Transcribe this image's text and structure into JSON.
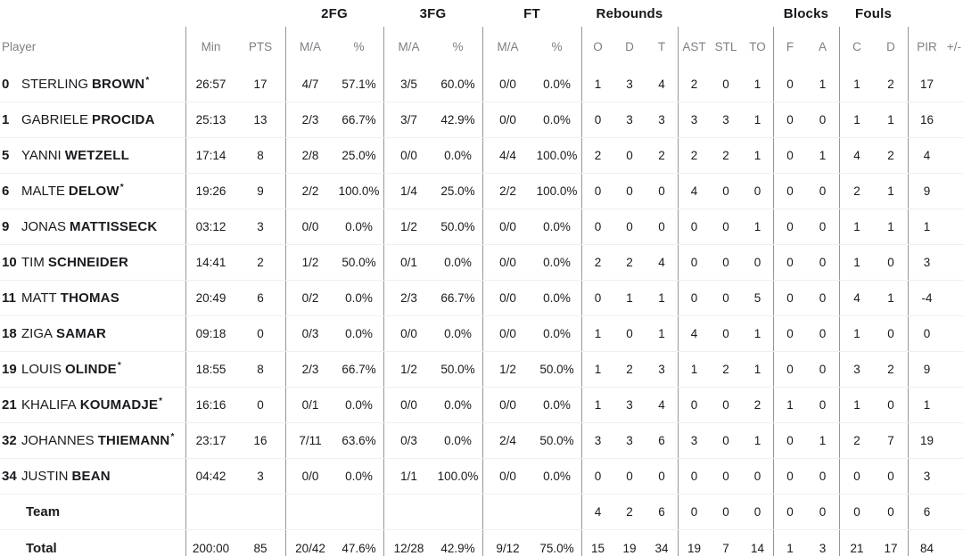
{
  "colors": {
    "background": "#ffffff",
    "text": "#1a1a1e",
    "header_text": "#7f7f85",
    "group_divider": "#969696",
    "row_divider": "#efefef"
  },
  "table": {
    "group_headers": {
      "fg2": "2FG",
      "fg3": "3FG",
      "ft": "FT",
      "rebounds": "Rebounds",
      "blocks": "Blocks",
      "fouls": "Fouls"
    },
    "column_headers": {
      "player": "Player",
      "min": "Min",
      "pts": "PTS",
      "ma2": "M/A",
      "pct2": "%",
      "ma3": "M/A",
      "pct3": "%",
      "maf": "M/A",
      "pctf": "%",
      "reb_o": "O",
      "reb_d": "D",
      "reb_t": "T",
      "ast": "AST",
      "stl": "STL",
      "to": "TO",
      "blk_f": "F",
      "blk_a": "A",
      "foul_c": "C",
      "foul_d": "D",
      "pir": "PIR",
      "plus_minus": "+/-"
    },
    "rows": [
      {
        "num": "0",
        "first": "STERLING",
        "last": "BROWN",
        "star": "*",
        "label": "",
        "min": "26:57",
        "pts": "17",
        "fg2_ma": "4/7",
        "fg2_pct": "57.1%",
        "fg3_ma": "3/5",
        "fg3_pct": "60.0%",
        "ft_ma": "0/0",
        "ft_pct": "0.0%",
        "reb_o": "1",
        "reb_d": "3",
        "reb_t": "4",
        "ast": "2",
        "stl": "0",
        "to": "1",
        "blk_f": "0",
        "blk_a": "1",
        "foul_c": "1",
        "foul_d": "2",
        "pir": "17",
        "pm": ""
      },
      {
        "num": "1",
        "first": "GABRIELE",
        "last": "PROCIDA",
        "star": "",
        "label": "",
        "min": "25:13",
        "pts": "13",
        "fg2_ma": "2/3",
        "fg2_pct": "66.7%",
        "fg3_ma": "3/7",
        "fg3_pct": "42.9%",
        "ft_ma": "0/0",
        "ft_pct": "0.0%",
        "reb_o": "0",
        "reb_d": "3",
        "reb_t": "3",
        "ast": "3",
        "stl": "3",
        "to": "1",
        "blk_f": "0",
        "blk_a": "0",
        "foul_c": "1",
        "foul_d": "1",
        "pir": "16",
        "pm": ""
      },
      {
        "num": "5",
        "first": "YANNI",
        "last": "WETZELL",
        "star": "",
        "label": "",
        "min": "17:14",
        "pts": "8",
        "fg2_ma": "2/8",
        "fg2_pct": "25.0%",
        "fg3_ma": "0/0",
        "fg3_pct": "0.0%",
        "ft_ma": "4/4",
        "ft_pct": "100.0%",
        "reb_o": "2",
        "reb_d": "0",
        "reb_t": "2",
        "ast": "2",
        "stl": "2",
        "to": "1",
        "blk_f": "0",
        "blk_a": "1",
        "foul_c": "4",
        "foul_d": "2",
        "pir": "4",
        "pm": ""
      },
      {
        "num": "6",
        "first": "MALTE",
        "last": "DELOW",
        "star": "*",
        "label": "",
        "min": "19:26",
        "pts": "9",
        "fg2_ma": "2/2",
        "fg2_pct": "100.0%",
        "fg3_ma": "1/4",
        "fg3_pct": "25.0%",
        "ft_ma": "2/2",
        "ft_pct": "100.0%",
        "reb_o": "0",
        "reb_d": "0",
        "reb_t": "0",
        "ast": "4",
        "stl": "0",
        "to": "0",
        "blk_f": "0",
        "blk_a": "0",
        "foul_c": "2",
        "foul_d": "1",
        "pir": "9",
        "pm": ""
      },
      {
        "num": "9",
        "first": "JONAS",
        "last": "MATTISSECK",
        "star": "",
        "label": "",
        "min": "03:12",
        "pts": "3",
        "fg2_ma": "0/0",
        "fg2_pct": "0.0%",
        "fg3_ma": "1/2",
        "fg3_pct": "50.0%",
        "ft_ma": "0/0",
        "ft_pct": "0.0%",
        "reb_o": "0",
        "reb_d": "0",
        "reb_t": "0",
        "ast": "0",
        "stl": "0",
        "to": "1",
        "blk_f": "0",
        "blk_a": "0",
        "foul_c": "1",
        "foul_d": "1",
        "pir": "1",
        "pm": ""
      },
      {
        "num": "10",
        "first": "TIM",
        "last": "SCHNEIDER",
        "star": "",
        "label": "",
        "min": "14:41",
        "pts": "2",
        "fg2_ma": "1/2",
        "fg2_pct": "50.0%",
        "fg3_ma": "0/1",
        "fg3_pct": "0.0%",
        "ft_ma": "0/0",
        "ft_pct": "0.0%",
        "reb_o": "2",
        "reb_d": "2",
        "reb_t": "4",
        "ast": "0",
        "stl": "0",
        "to": "0",
        "blk_f": "0",
        "blk_a": "0",
        "foul_c": "1",
        "foul_d": "0",
        "pir": "3",
        "pm": ""
      },
      {
        "num": "11",
        "first": "MATT",
        "last": "THOMAS",
        "star": "",
        "label": "",
        "min": "20:49",
        "pts": "6",
        "fg2_ma": "0/2",
        "fg2_pct": "0.0%",
        "fg3_ma": "2/3",
        "fg3_pct": "66.7%",
        "ft_ma": "0/0",
        "ft_pct": "0.0%",
        "reb_o": "0",
        "reb_d": "1",
        "reb_t": "1",
        "ast": "0",
        "stl": "0",
        "to": "5",
        "blk_f": "0",
        "blk_a": "0",
        "foul_c": "4",
        "foul_d": "1",
        "pir": "-4",
        "pm": ""
      },
      {
        "num": "18",
        "first": "ZIGA",
        "last": "SAMAR",
        "star": "",
        "label": "",
        "min": "09:18",
        "pts": "0",
        "fg2_ma": "0/3",
        "fg2_pct": "0.0%",
        "fg3_ma": "0/0",
        "fg3_pct": "0.0%",
        "ft_ma": "0/0",
        "ft_pct": "0.0%",
        "reb_o": "1",
        "reb_d": "0",
        "reb_t": "1",
        "ast": "4",
        "stl": "0",
        "to": "1",
        "blk_f": "0",
        "blk_a": "0",
        "foul_c": "1",
        "foul_d": "0",
        "pir": "0",
        "pm": ""
      },
      {
        "num": "19",
        "first": "LOUIS",
        "last": "OLINDE",
        "star": "*",
        "label": "",
        "min": "18:55",
        "pts": "8",
        "fg2_ma": "2/3",
        "fg2_pct": "66.7%",
        "fg3_ma": "1/2",
        "fg3_pct": "50.0%",
        "ft_ma": "1/2",
        "ft_pct": "50.0%",
        "reb_o": "1",
        "reb_d": "2",
        "reb_t": "3",
        "ast": "1",
        "stl": "2",
        "to": "1",
        "blk_f": "0",
        "blk_a": "0",
        "foul_c": "3",
        "foul_d": "2",
        "pir": "9",
        "pm": ""
      },
      {
        "num": "21",
        "first": "KHALIFA",
        "last": "KOUMADJE",
        "star": "*",
        "label": "",
        "min": "16:16",
        "pts": "0",
        "fg2_ma": "0/1",
        "fg2_pct": "0.0%",
        "fg3_ma": "0/0",
        "fg3_pct": "0.0%",
        "ft_ma": "0/0",
        "ft_pct": "0.0%",
        "reb_o": "1",
        "reb_d": "3",
        "reb_t": "4",
        "ast": "0",
        "stl": "0",
        "to": "2",
        "blk_f": "1",
        "blk_a": "0",
        "foul_c": "1",
        "foul_d": "0",
        "pir": "1",
        "pm": ""
      },
      {
        "num": "32",
        "first": "JOHANNES",
        "last": "THIEMANN",
        "star": "*",
        "label": "",
        "min": "23:17",
        "pts": "16",
        "fg2_ma": "7/11",
        "fg2_pct": "63.6%",
        "fg3_ma": "0/3",
        "fg3_pct": "0.0%",
        "ft_ma": "2/4",
        "ft_pct": "50.0%",
        "reb_o": "3",
        "reb_d": "3",
        "reb_t": "6",
        "ast": "3",
        "stl": "0",
        "to": "1",
        "blk_f": "0",
        "blk_a": "1",
        "foul_c": "2",
        "foul_d": "7",
        "pir": "19",
        "pm": ""
      },
      {
        "num": "34",
        "first": "JUSTIN",
        "last": "BEAN",
        "star": "",
        "label": "",
        "min": "04:42",
        "pts": "3",
        "fg2_ma": "0/0",
        "fg2_pct": "0.0%",
        "fg3_ma": "1/1",
        "fg3_pct": "100.0%",
        "ft_ma": "0/0",
        "ft_pct": "0.0%",
        "reb_o": "0",
        "reb_d": "0",
        "reb_t": "0",
        "ast": "0",
        "stl": "0",
        "to": "0",
        "blk_f": "0",
        "blk_a": "0",
        "foul_c": "0",
        "foul_d": "0",
        "pir": "3",
        "pm": ""
      },
      {
        "num": "",
        "first": "",
        "last": "",
        "star": "",
        "label": "Team",
        "min": "",
        "pts": "",
        "fg2_ma": "",
        "fg2_pct": "",
        "fg3_ma": "",
        "fg3_pct": "",
        "ft_ma": "",
        "ft_pct": "",
        "reb_o": "4",
        "reb_d": "2",
        "reb_t": "6",
        "ast": "0",
        "stl": "0",
        "to": "0",
        "blk_f": "0",
        "blk_a": "0",
        "foul_c": "0",
        "foul_d": "0",
        "pir": "6",
        "pm": ""
      },
      {
        "num": "",
        "first": "",
        "last": "",
        "star": "",
        "label": "Total",
        "min": "200:00",
        "pts": "85",
        "fg2_ma": "20/42",
        "fg2_pct": "47.6%",
        "fg3_ma": "12/28",
        "fg3_pct": "42.9%",
        "ft_ma": "9/12",
        "ft_pct": "75.0%",
        "reb_o": "15",
        "reb_d": "19",
        "reb_t": "34",
        "ast": "19",
        "stl": "7",
        "to": "14",
        "blk_f": "1",
        "blk_a": "3",
        "foul_c": "21",
        "foul_d": "17",
        "pir": "84",
        "pm": ""
      }
    ]
  }
}
